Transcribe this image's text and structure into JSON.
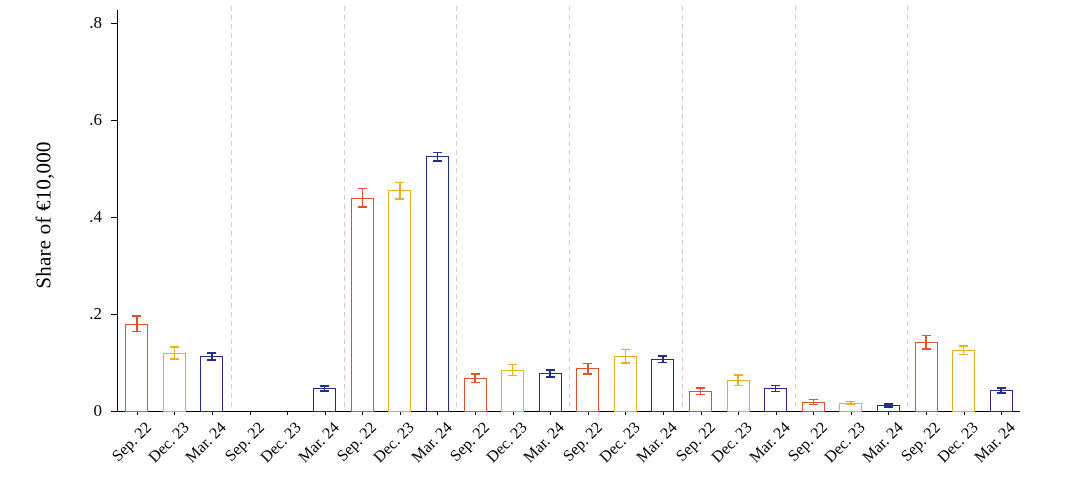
{
  "chart_data": {
    "type": "bar",
    "title": "",
    "ylabel": "Share of €10,000",
    "xlabel": "",
    "ylim": [
      0,
      0.8
    ],
    "grid": "vertical dashed separators between groups, no horizontal gridlines",
    "legend": "none",
    "groups": 8,
    "x_tick_labels": [
      "Sep. 22",
      "Dec. 23",
      "Mar. 24"
    ],
    "yticks": [
      {
        "value": 0,
        "label": "0"
      },
      {
        "value": 0.2,
        "label": ".2"
      },
      {
        "value": 0.4,
        "label": ".4"
      },
      {
        "value": 0.6,
        "label": ".6"
      },
      {
        "value": 0.8,
        "label": ".8"
      }
    ],
    "bar_style": "hollow outlined bars with error bars (95% CI caps)",
    "series": [
      {
        "name": "Sep. 22",
        "color": "#e0522e",
        "values": [
          0.18,
          null,
          0.44,
          0.068,
          0.088,
          0.041,
          0.019,
          0.142
        ],
        "errors": [
          0.017,
          null,
          0.02,
          0.01,
          0.012,
          0.008,
          0.006,
          0.015
        ]
      },
      {
        "name": "Dec. 23",
        "color": "#eab11f",
        "values": [
          0.12,
          null,
          0.455,
          0.085,
          0.113,
          0.064,
          0.017,
          0.126
        ],
        "errors": [
          0.013,
          null,
          0.018,
          0.012,
          0.015,
          0.012,
          0.004,
          0.01
        ]
      },
      {
        "name": "Mar. 24",
        "color": "#232d8a",
        "values": [
          0.113,
          0.047,
          0.525,
          0.078,
          0.107,
          0.047,
          0.012,
          0.043
        ],
        "errors": [
          0.008,
          0.006,
          0.01,
          0.008,
          0.008,
          0.007,
          0.004,
          0.006
        ]
      }
    ]
  }
}
